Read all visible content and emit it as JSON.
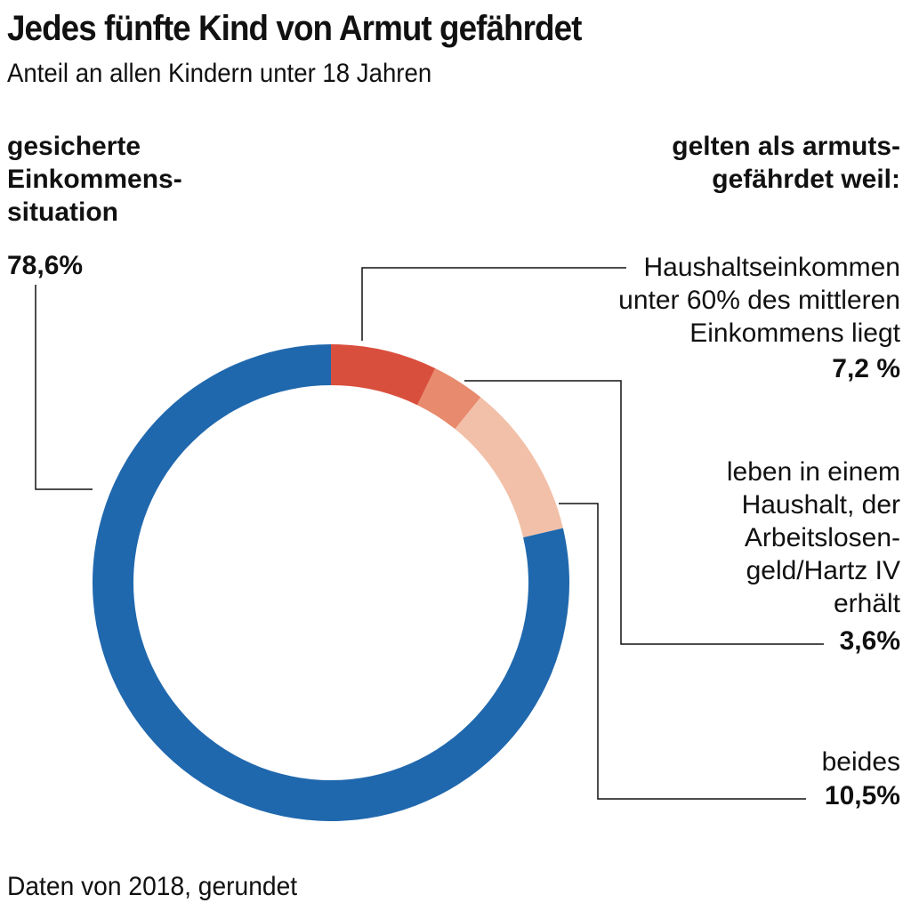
{
  "chart_data": {
    "type": "pie",
    "style": "donut",
    "title": "Jedes fünfte Kind von Armut gefährdet",
    "subtitle": "Anteil an allen Kindern unter 18 Jahren",
    "group_header": "gelten als armuts-\ngefährdet weil:",
    "slices": [
      {
        "label": "gesicherte\nEinkommens-\nsituation",
        "value": 78.6,
        "value_label": "78,6%",
        "color": "#2068ad"
      },
      {
        "label": "Haushaltseinkommen\nunter 60% des mittleren\nEinkommens liegt",
        "value": 7.2,
        "value_label": "7,2 %",
        "color": "#d94f3d"
      },
      {
        "label": "leben in einem\nHaushalt, der\nArbeitslosen-\ngeld/Hartz IV\nerhält",
        "value": 3.6,
        "value_label": "3,6%",
        "color": "#e88a6e"
      },
      {
        "label": "beides",
        "value": 10.5,
        "value_label": "10,5%",
        "color": "#f2c0a8"
      }
    ],
    "footnote": "Daten von 2018, gerundet"
  }
}
